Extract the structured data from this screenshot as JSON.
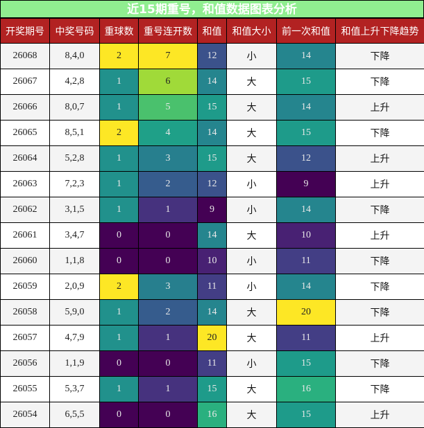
{
  "title": "近15期重号，和值数据图表分析",
  "columns": [
    "开奖期号",
    "中奖号码",
    "重球数",
    "重号连开数",
    "和值",
    "和值大小",
    "前一次和值",
    "和值上升下降趋势"
  ],
  "colors": {
    "header_bg": "#b22222",
    "title_bg": "#90ee90",
    "row_alt": "#f4f4f4",
    "row_white": "#ffffff"
  },
  "rows": [
    {
      "issue": "26068",
      "numbers": "8,4,0",
      "repeat": "2",
      "repeat_bg": "#fde725",
      "streak": "7",
      "streak_bg": "#fde725",
      "sum": "12",
      "sum_bg": "#3b528b",
      "size": "小",
      "prev_sum": "14",
      "prev_bg": "#25858e",
      "trend": "下降"
    },
    {
      "issue": "26067",
      "numbers": "4,2,8",
      "repeat": "1",
      "repeat_bg": "#21918c",
      "streak": "6",
      "streak_bg": "#a0da39",
      "sum": "14",
      "sum_bg": "#25858e",
      "size": "大",
      "prev_sum": "15",
      "prev_bg": "#1e9b8a",
      "trend": "下降"
    },
    {
      "issue": "26066",
      "numbers": "8,0,7",
      "repeat": "1",
      "repeat_bg": "#21918c",
      "streak": "5",
      "streak_bg": "#4ac16d",
      "sum": "15",
      "sum_bg": "#1e9b8a",
      "size": "大",
      "prev_sum": "14",
      "prev_bg": "#25858e",
      "trend": "上升"
    },
    {
      "issue": "26065",
      "numbers": "8,5,1",
      "repeat": "2",
      "repeat_bg": "#fde725",
      "streak": "4",
      "streak_bg": "#1fa088",
      "sum": "14",
      "sum_bg": "#25858e",
      "size": "大",
      "prev_sum": "15",
      "prev_bg": "#1e9b8a",
      "trend": "下降"
    },
    {
      "issue": "26064",
      "numbers": "5,2,8",
      "repeat": "1",
      "repeat_bg": "#21918c",
      "streak": "3",
      "streak_bg": "#277f8e",
      "sum": "15",
      "sum_bg": "#1e9b8a",
      "size": "大",
      "prev_sum": "12",
      "prev_bg": "#3b528b",
      "trend": "上升"
    },
    {
      "issue": "26063",
      "numbers": "7,2,3",
      "repeat": "1",
      "repeat_bg": "#21918c",
      "streak": "2",
      "streak_bg": "#365c8d",
      "sum": "12",
      "sum_bg": "#3b528b",
      "size": "小",
      "prev_sum": "9",
      "prev_bg": "#440154",
      "trend": "上升"
    },
    {
      "issue": "26062",
      "numbers": "3,1,5",
      "repeat": "1",
      "repeat_bg": "#21918c",
      "streak": "1",
      "streak_bg": "#46327e",
      "sum": "9",
      "sum_bg": "#440154",
      "size": "小",
      "prev_sum": "14",
      "prev_bg": "#25858e",
      "trend": "下降"
    },
    {
      "issue": "26061",
      "numbers": "3,4,7",
      "repeat": "0",
      "repeat_bg": "#440154",
      "streak": "0",
      "streak_bg": "#440154",
      "sum": "14",
      "sum_bg": "#25858e",
      "size": "大",
      "prev_sum": "10",
      "prev_bg": "#482173",
      "trend": "上升"
    },
    {
      "issue": "26060",
      "numbers": "1,1,8",
      "repeat": "0",
      "repeat_bg": "#440154",
      "streak": "0",
      "streak_bg": "#440154",
      "sum": "10",
      "sum_bg": "#482173",
      "size": "小",
      "prev_sum": "11",
      "prev_bg": "#433e85",
      "trend": "下降"
    },
    {
      "issue": "26059",
      "numbers": "2,0,9",
      "repeat": "2",
      "repeat_bg": "#fde725",
      "streak": "3",
      "streak_bg": "#277f8e",
      "sum": "11",
      "sum_bg": "#433e85",
      "size": "小",
      "prev_sum": "14",
      "prev_bg": "#25858e",
      "trend": "下降"
    },
    {
      "issue": "26058",
      "numbers": "5,9,0",
      "repeat": "1",
      "repeat_bg": "#21918c",
      "streak": "2",
      "streak_bg": "#365c8d",
      "sum": "14",
      "sum_bg": "#25858e",
      "size": "大",
      "prev_sum": "20",
      "prev_bg": "#fde725",
      "trend": "下降"
    },
    {
      "issue": "26057",
      "numbers": "4,7,9",
      "repeat": "1",
      "repeat_bg": "#21918c",
      "streak": "1",
      "streak_bg": "#46327e",
      "sum": "20",
      "sum_bg": "#fde725",
      "size": "大",
      "prev_sum": "11",
      "prev_bg": "#433e85",
      "trend": "上升"
    },
    {
      "issue": "26056",
      "numbers": "1,1,9",
      "repeat": "0",
      "repeat_bg": "#440154",
      "streak": "0",
      "streak_bg": "#440154",
      "sum": "11",
      "sum_bg": "#433e85",
      "size": "小",
      "prev_sum": "15",
      "prev_bg": "#1e9b8a",
      "trend": "下降"
    },
    {
      "issue": "26055",
      "numbers": "5,3,7",
      "repeat": "1",
      "repeat_bg": "#21918c",
      "streak": "1",
      "streak_bg": "#46327e",
      "sum": "15",
      "sum_bg": "#1e9b8a",
      "size": "大",
      "prev_sum": "16",
      "prev_bg": "#2ab07f",
      "trend": "下降"
    },
    {
      "issue": "26054",
      "numbers": "6,5,5",
      "repeat": "0",
      "repeat_bg": "#440154",
      "streak": "0",
      "streak_bg": "#440154",
      "sum": "16",
      "sum_bg": "#2ab07f",
      "size": "大",
      "prev_sum": "15",
      "prev_bg": "#1e9b8a",
      "trend": "上升"
    }
  ]
}
